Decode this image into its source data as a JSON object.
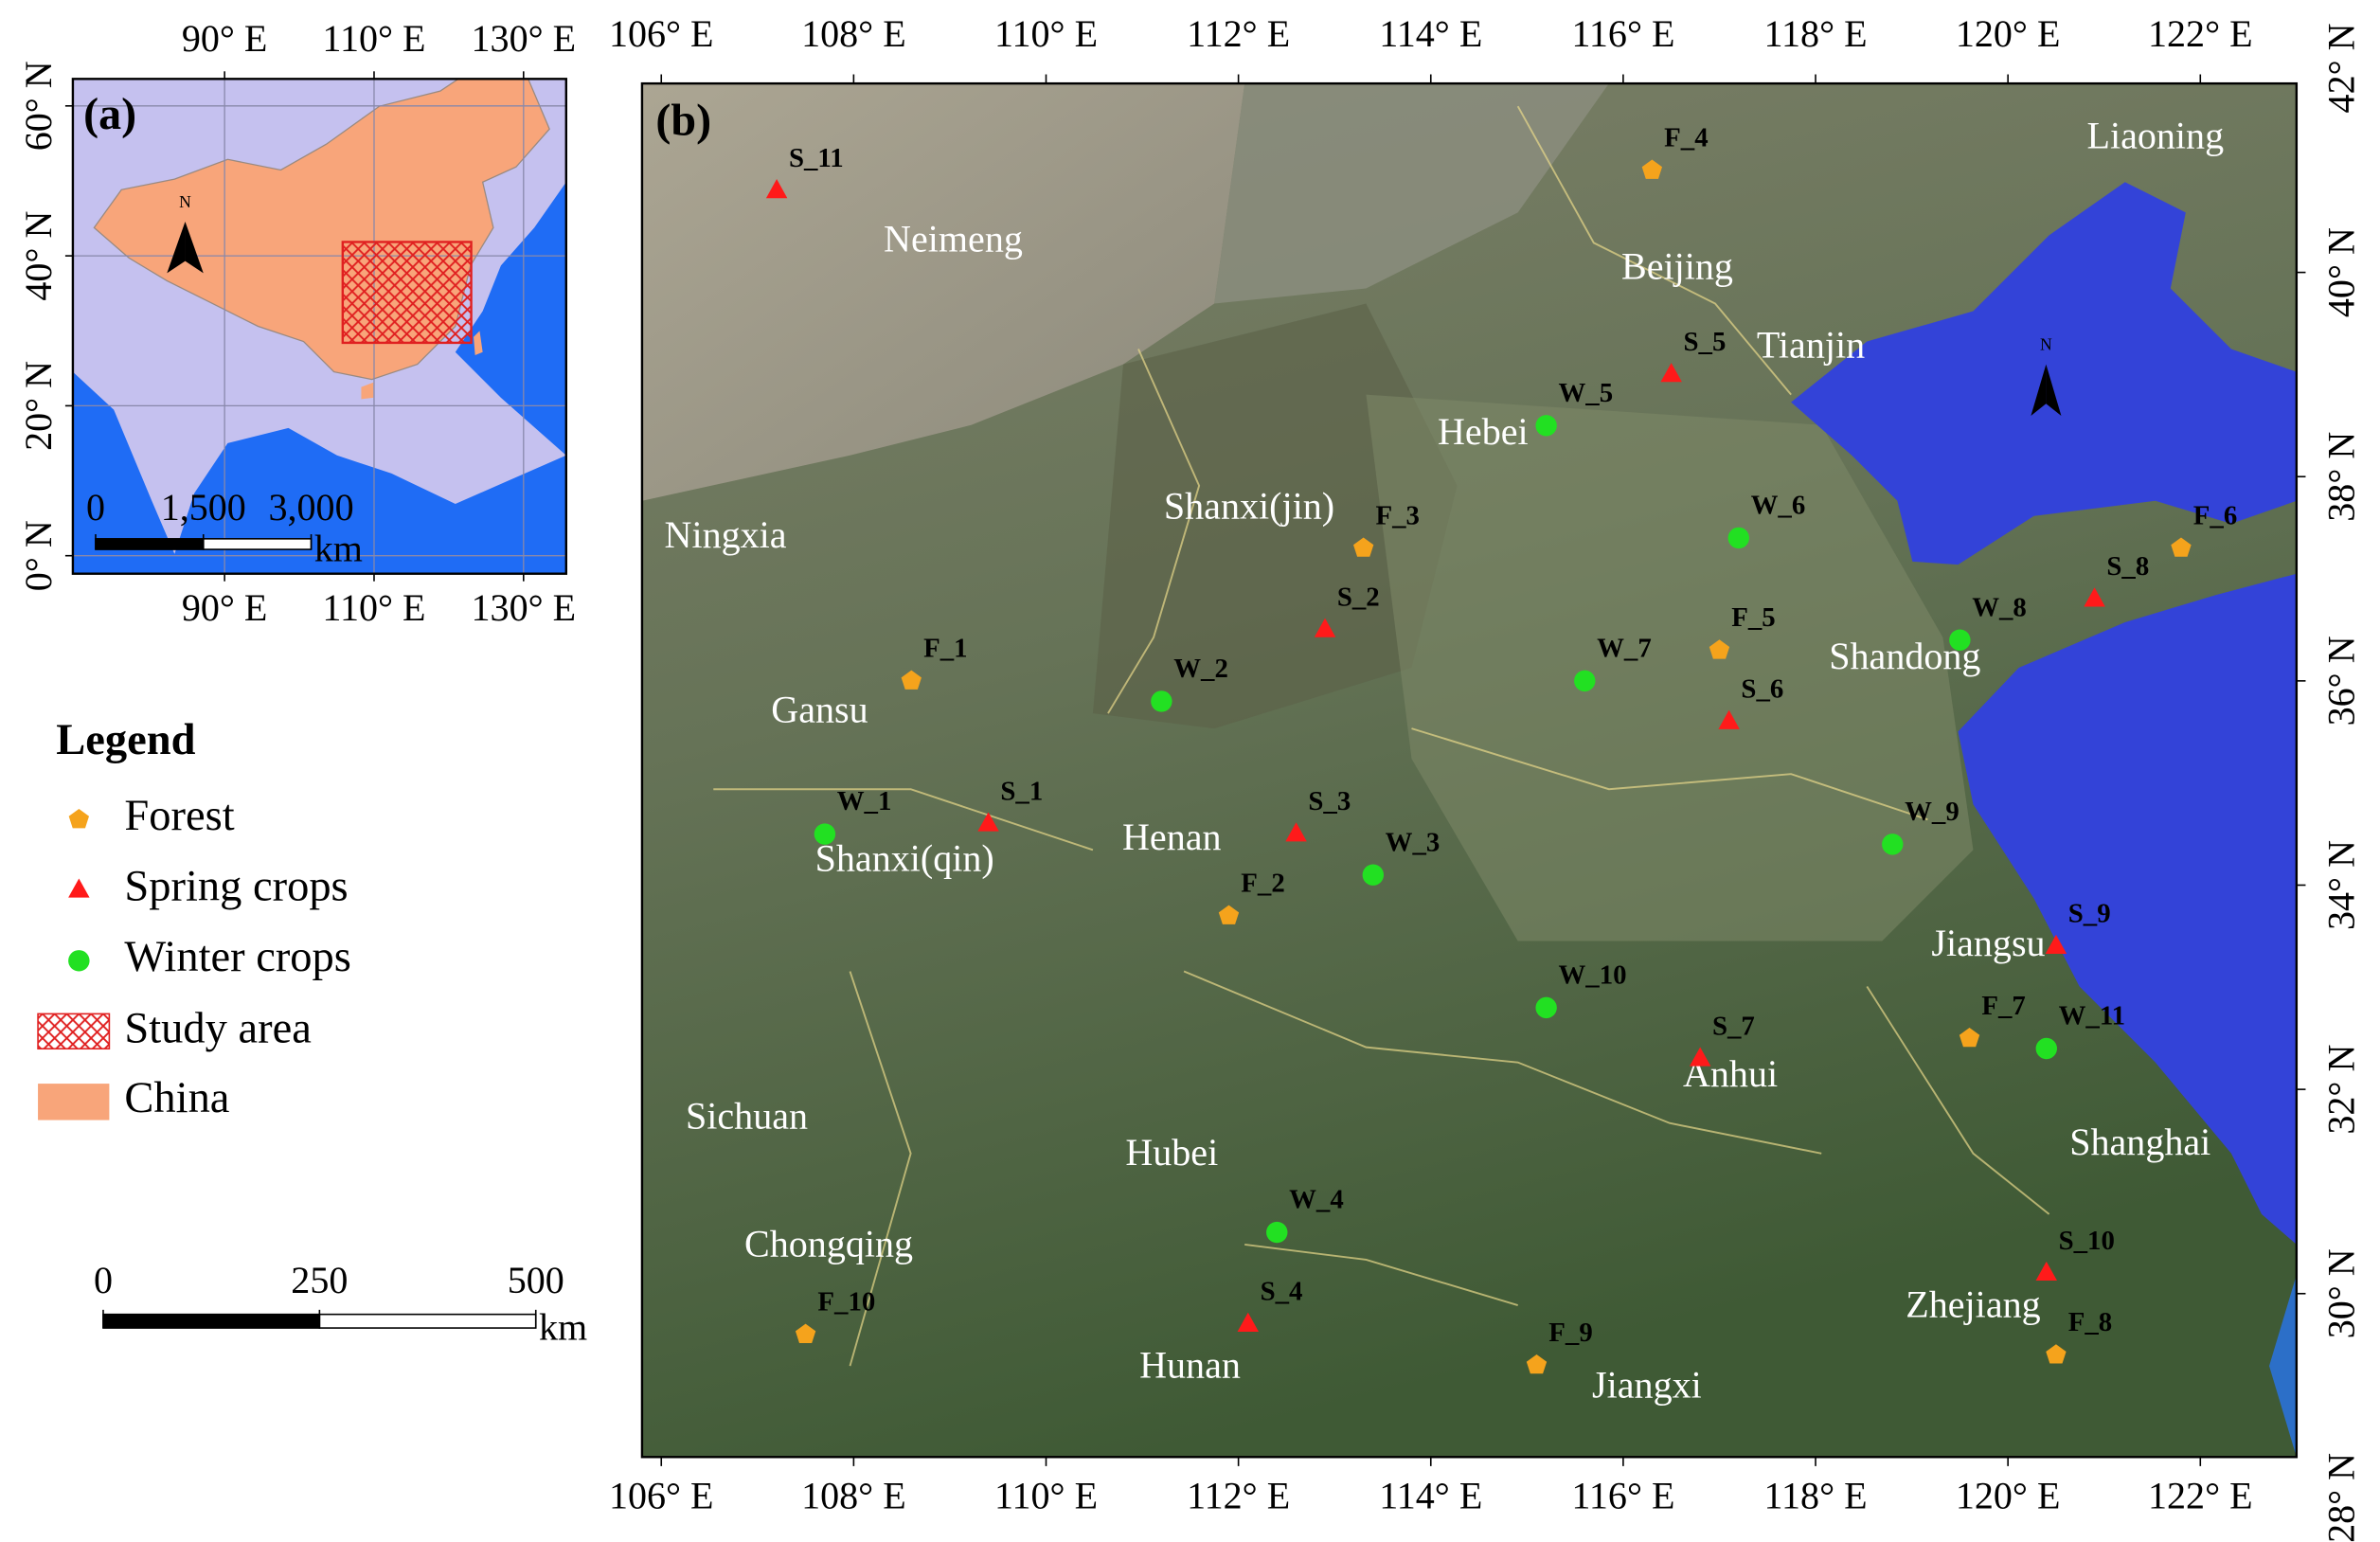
{
  "panel_a": {
    "label": "(a)",
    "xlim": [
      69.7,
      135.7
    ],
    "ylim": [
      -2.4,
      63.6
    ],
    "xticks": [
      {
        "value": 90,
        "label": "90° E"
      },
      {
        "value": 110,
        "label": "110° E"
      },
      {
        "value": 130,
        "label": "130° E"
      }
    ],
    "yticks": [
      {
        "value": 0,
        "label": "0° N"
      },
      {
        "value": 20,
        "label": "20° N"
      },
      {
        "value": 40,
        "label": "40° N"
      },
      {
        "value": 60,
        "label": "60° N"
      }
    ],
    "north": "N",
    "scalebar": {
      "ticks": [
        {
          "value": 0,
          "label": "0"
        },
        {
          "value": 1500,
          "label": "1,500"
        },
        {
          "value": 3000,
          "label": "3,000"
        }
      ],
      "unit": "km"
    }
  },
  "panel_b": {
    "label": "(b)",
    "xlim": [
      105.8,
      123.0
    ],
    "ylim": [
      28.4,
      41.85
    ],
    "xticks": [
      {
        "value": 106,
        "label": "106° E"
      },
      {
        "value": 108,
        "label": "108° E"
      },
      {
        "value": 110,
        "label": "110° E"
      },
      {
        "value": 112,
        "label": "112° E"
      },
      {
        "value": 114,
        "label": "114° E"
      },
      {
        "value": 116,
        "label": "116° E"
      },
      {
        "value": 118,
        "label": "118° E"
      },
      {
        "value": 120,
        "label": "120° E"
      },
      {
        "value": 122,
        "label": "122° E"
      }
    ],
    "yticks": [
      {
        "value": 28,
        "label": "28° N"
      },
      {
        "value": 30,
        "label": "30° N"
      },
      {
        "value": 32,
        "label": "32° N"
      },
      {
        "value": 34,
        "label": "34° N"
      },
      {
        "value": 36,
        "label": "36° N"
      },
      {
        "value": 38,
        "label": "38° N"
      },
      {
        "value": 40,
        "label": "40° N"
      },
      {
        "value": 42,
        "label": "42° N"
      }
    ],
    "north": "N",
    "provinces": [
      "Liaoning",
      "Neimeng",
      "Beijing",
      "Tianjin",
      "Hebei",
      "Ningxia",
      "Shanxi(jin)",
      "Shandong",
      "Gansu",
      "Henan",
      "Shanxi(qin)",
      "Jiangsu",
      "Anhui",
      "Sichuan",
      "Hubei",
      "Shanghai",
      "Chongqing",
      "Zhejiang",
      "Hunan",
      "Jiangxi"
    ],
    "scalebar": {
      "ticks": [
        {
          "value": 0,
          "label": "0"
        },
        {
          "value": 250,
          "label": "250"
        },
        {
          "value": 500,
          "label": "500"
        }
      ],
      "unit": "km"
    },
    "series": [
      {
        "name": "Forest",
        "color": "#f5a31c",
        "marker": "pentagon",
        "sites": [
          {
            "label": "F_1",
            "lon": 108.6,
            "lat": 36.0
          },
          {
            "label": "F_2",
            "lon": 111.9,
            "lat": 33.7
          },
          {
            "label": "F_3",
            "lon": 113.3,
            "lat": 37.3
          },
          {
            "label": "F_4",
            "lon": 116.3,
            "lat": 41.0
          },
          {
            "label": "F_5",
            "lon": 117.0,
            "lat": 36.3
          },
          {
            "label": "F_6",
            "lon": 121.8,
            "lat": 37.3
          },
          {
            "label": "F_7",
            "lon": 119.6,
            "lat": 32.5
          },
          {
            "label": "F_8",
            "lon": 120.5,
            "lat": 29.4
          },
          {
            "label": "F_9",
            "lon": 115.1,
            "lat": 29.3
          },
          {
            "label": "F_10",
            "lon": 107.5,
            "lat": 29.6
          }
        ]
      },
      {
        "name": "Spring crops",
        "color": "#ff1a1a",
        "marker": "triangle",
        "sites": [
          {
            "label": "S_1",
            "lon": 109.4,
            "lat": 34.6
          },
          {
            "label": "S_2",
            "lon": 112.9,
            "lat": 36.5
          },
          {
            "label": "S_3",
            "lon": 112.6,
            "lat": 34.5
          },
          {
            "label": "S_4",
            "lon": 112.1,
            "lat": 29.7
          },
          {
            "label": "S_5",
            "lon": 116.5,
            "lat": 39.0
          },
          {
            "label": "S_6",
            "lon": 117.1,
            "lat": 35.6
          },
          {
            "label": "S_7",
            "lon": 116.8,
            "lat": 32.3
          },
          {
            "label": "S_8",
            "lon": 120.9,
            "lat": 36.8
          },
          {
            "label": "S_9",
            "lon": 120.5,
            "lat": 33.4
          },
          {
            "label": "S_10",
            "lon": 120.4,
            "lat": 30.2
          },
          {
            "label": "S_11",
            "lon": 107.2,
            "lat": 40.8
          }
        ]
      },
      {
        "name": "Winter crops",
        "color": "#22e022",
        "marker": "circle",
        "sites": [
          {
            "label": "W_1",
            "lon": 107.7,
            "lat": 34.5
          },
          {
            "label": "W_2",
            "lon": 111.2,
            "lat": 35.8
          },
          {
            "label": "W_3",
            "lon": 113.4,
            "lat": 34.1
          },
          {
            "label": "W_4",
            "lon": 112.4,
            "lat": 30.6
          },
          {
            "label": "W_5",
            "lon": 115.2,
            "lat": 38.5
          },
          {
            "label": "W_6",
            "lon": 117.2,
            "lat": 37.4
          },
          {
            "label": "W_7",
            "lon": 115.6,
            "lat": 36.0
          },
          {
            "label": "W_8",
            "lon": 119.5,
            "lat": 36.4
          },
          {
            "label": "W_9",
            "lon": 118.8,
            "lat": 34.4
          },
          {
            "label": "W_10",
            "lon": 115.2,
            "lat": 32.8
          },
          {
            "label": "W_11",
            "lon": 120.4,
            "lat": 32.4
          }
        ]
      }
    ]
  },
  "legend": {
    "title": "Legend",
    "study_area": {
      "name": "Study area",
      "color": "#e02020"
    },
    "china": {
      "name": "China",
      "color": "#f8a57a"
    }
  }
}
